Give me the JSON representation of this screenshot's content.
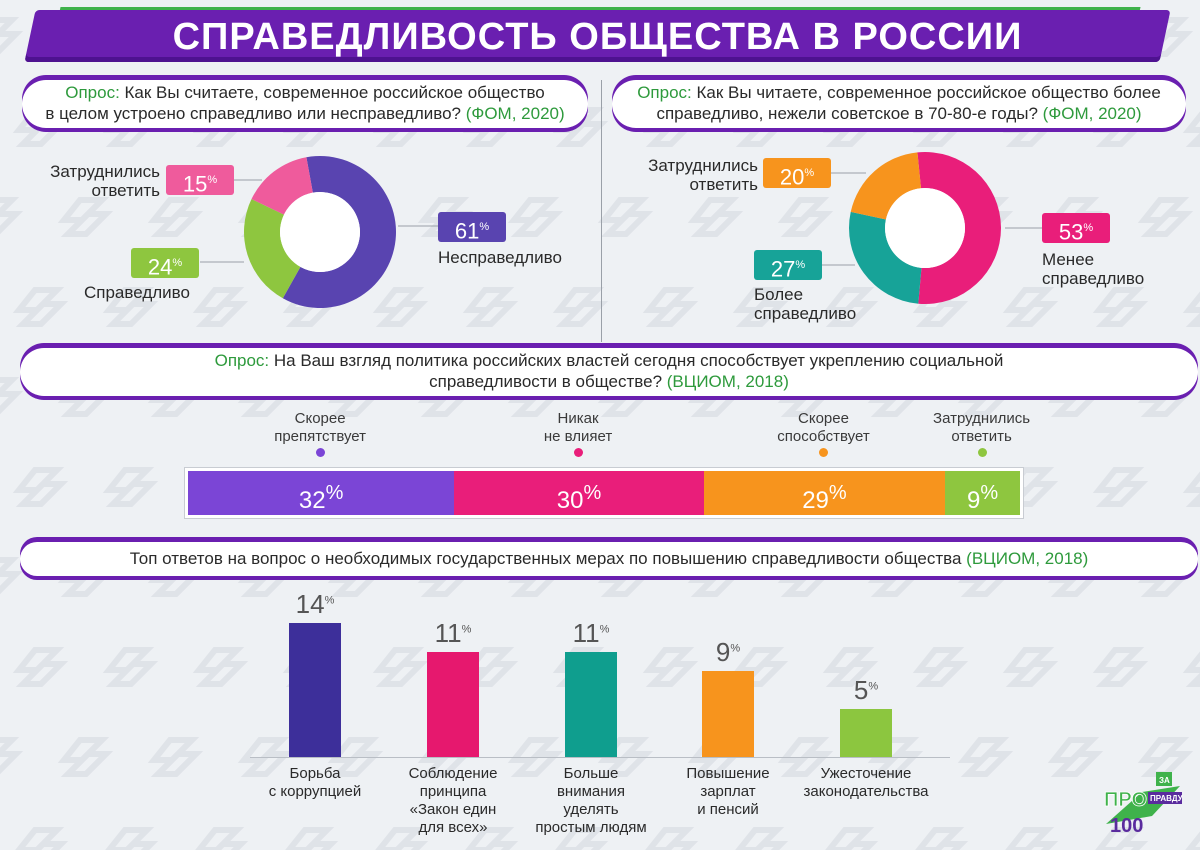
{
  "title": "СПРАВЕДЛИВОСТЬ ОБЩЕСТВА В РОССИИ",
  "poll_label": "Опрос:",
  "survey1": {
    "q1": "Как Вы считаете, современное российское общество",
    "q2": "в целом устроено справедливо или несправедливо?",
    "source": "(ФОМ, 2020)"
  },
  "survey2": {
    "q1": "Как Вы читаете, современное российское общество более",
    "q2": "справедливо, нежели советское в 70-80-е годы?",
    "source": "(ФОМ, 2020)"
  },
  "survey3": {
    "q1": "На Ваш взгляд политика российских властей сегодня способствует укреплению социальной",
    "q2": "справедливости в обществе?",
    "source": "(ВЦИОМ, 2018)"
  },
  "survey4": {
    "q": "Топ ответов на вопрос о необходимых государственных мерах по повышению справедливости общества",
    "source": "(ВЦИОМ, 2018)"
  },
  "percent_sign": "%",
  "logo": {
    "top": "ЗА",
    "pro": "ПРО",
    "num": "100",
    "side": "ПРАВДУ"
  },
  "colors": {
    "purple": "#5944b0",
    "violet": "#7b45d6",
    "pink": "#e91e7a",
    "hotpink": "#ef5b9c",
    "green": "#8ec63f",
    "orange": "#f7941d",
    "teal": "#17a398",
    "barpurple": "#3d2f9a",
    "barpink": "#e6186e",
    "barteal": "#0f9e8e",
    "barorange": "#f7941d",
    "bargreen": "#8cc63f"
  },
  "chart_data": [
    {
      "type": "pie",
      "title": "Как Вы считаете, современное российское общество в целом устроено справедливо или несправедливо? (ФОМ, 2020)",
      "categories": [
        "Несправедливо",
        "Справедливо",
        "Затруднились ответить"
      ],
      "values": [
        61,
        24,
        15
      ],
      "labels": {
        "unfair": "Несправедливо",
        "fair": "Справедливо",
        "hard_l1": "Затруднились",
        "hard_l2": "ответить"
      }
    },
    {
      "type": "pie",
      "title": "Как Вы читаете, современное российское общество более справедливо, нежели советское в 70-80-е годы? (ФОМ, 2020)",
      "categories": [
        "Менее справедливо",
        "Более справедливо",
        "Затруднились ответить"
      ],
      "values": [
        53,
        27,
        20
      ],
      "labels": {
        "less_l1": "Менее",
        "less_l2": "справедливо",
        "more_l1": "Более",
        "more_l2": "справедливо",
        "hard_l1": "Затруднились",
        "hard_l2": "ответить"
      }
    },
    {
      "type": "bar",
      "title": "На Ваш взгляд политика российских властей сегодня способствует укреплению социальной справедливости в обществе? (ВЦИОМ, 2018)",
      "categories": [
        "Скорее препятствует",
        "Никак не влияет",
        "Скорее способствует",
        "Затруднились ответить"
      ],
      "values": [
        32,
        30,
        29,
        9
      ],
      "labels": [
        [
          "Скорее",
          "препятствует"
        ],
        [
          "Никак",
          "не влияет"
        ],
        [
          "Скорее",
          "способствует"
        ],
        [
          "Затруднились",
          "ответить"
        ]
      ]
    },
    {
      "type": "bar",
      "title": "Топ ответов на вопрос о необходимых государственных мерах по повышению справедливости общества (ВЦИОМ, 2018)",
      "categories": [
        "Борьба с коррупцией",
        "Соблюдение принципа «Закон един для всех»",
        "Больше внимания уделять простым людям",
        "Повышение зарплат и пенсий",
        "Ужесточение законодательства"
      ],
      "values": [
        14,
        11,
        11,
        9,
        5
      ],
      "labels": [
        [
          "Борьба",
          "с коррупцией"
        ],
        [
          "Соблюдение",
          "принципа",
          "«Закон един",
          "для всех»"
        ],
        [
          "Больше",
          "внимания",
          "уделять",
          "простым людям"
        ],
        [
          "Повышение",
          "зарплат",
          "и пенсий"
        ],
        [
          "Ужесточение",
          "законодательства"
        ]
      ],
      "ylim": [
        0,
        14
      ]
    }
  ]
}
